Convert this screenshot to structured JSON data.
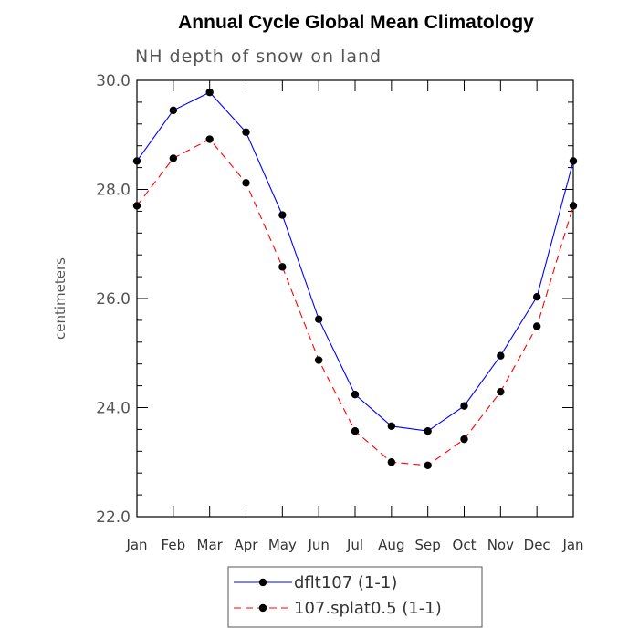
{
  "chart_data": {
    "type": "line",
    "title": "Annual Cycle Global Mean Climatology",
    "subtitle": "NH depth of snow on land",
    "xlabel": "",
    "ylabel": "centimeters",
    "categories": [
      "Jan",
      "Feb",
      "Mar",
      "Apr",
      "May",
      "Jun",
      "Jul",
      "Aug",
      "Sep",
      "Oct",
      "Nov",
      "Dec",
      "Jan"
    ],
    "ylim": [
      22.0,
      30.0
    ],
    "yticks": [
      "22.0",
      "24.0",
      "26.0",
      "28.0",
      "30.0"
    ],
    "ytick_values": [
      22,
      24,
      26,
      28,
      30
    ],
    "series": [
      {
        "name": "dflt107 (1-1)",
        "color": "#0000ff",
        "dash": "solid",
        "values": [
          28.52,
          29.45,
          29.78,
          29.05,
          27.53,
          25.62,
          24.24,
          23.66,
          23.57,
          24.03,
          24.95,
          26.03,
          28.52
        ]
      },
      {
        "name": "107.splat0.5 (1-1)",
        "color": "#ff0000",
        "dash": "dashed",
        "values": [
          27.7,
          28.57,
          28.92,
          28.12,
          26.58,
          24.87,
          23.57,
          23.0,
          22.94,
          23.42,
          24.29,
          25.49,
          27.7
        ]
      }
    ],
    "legend_position": "bottom-center"
  }
}
